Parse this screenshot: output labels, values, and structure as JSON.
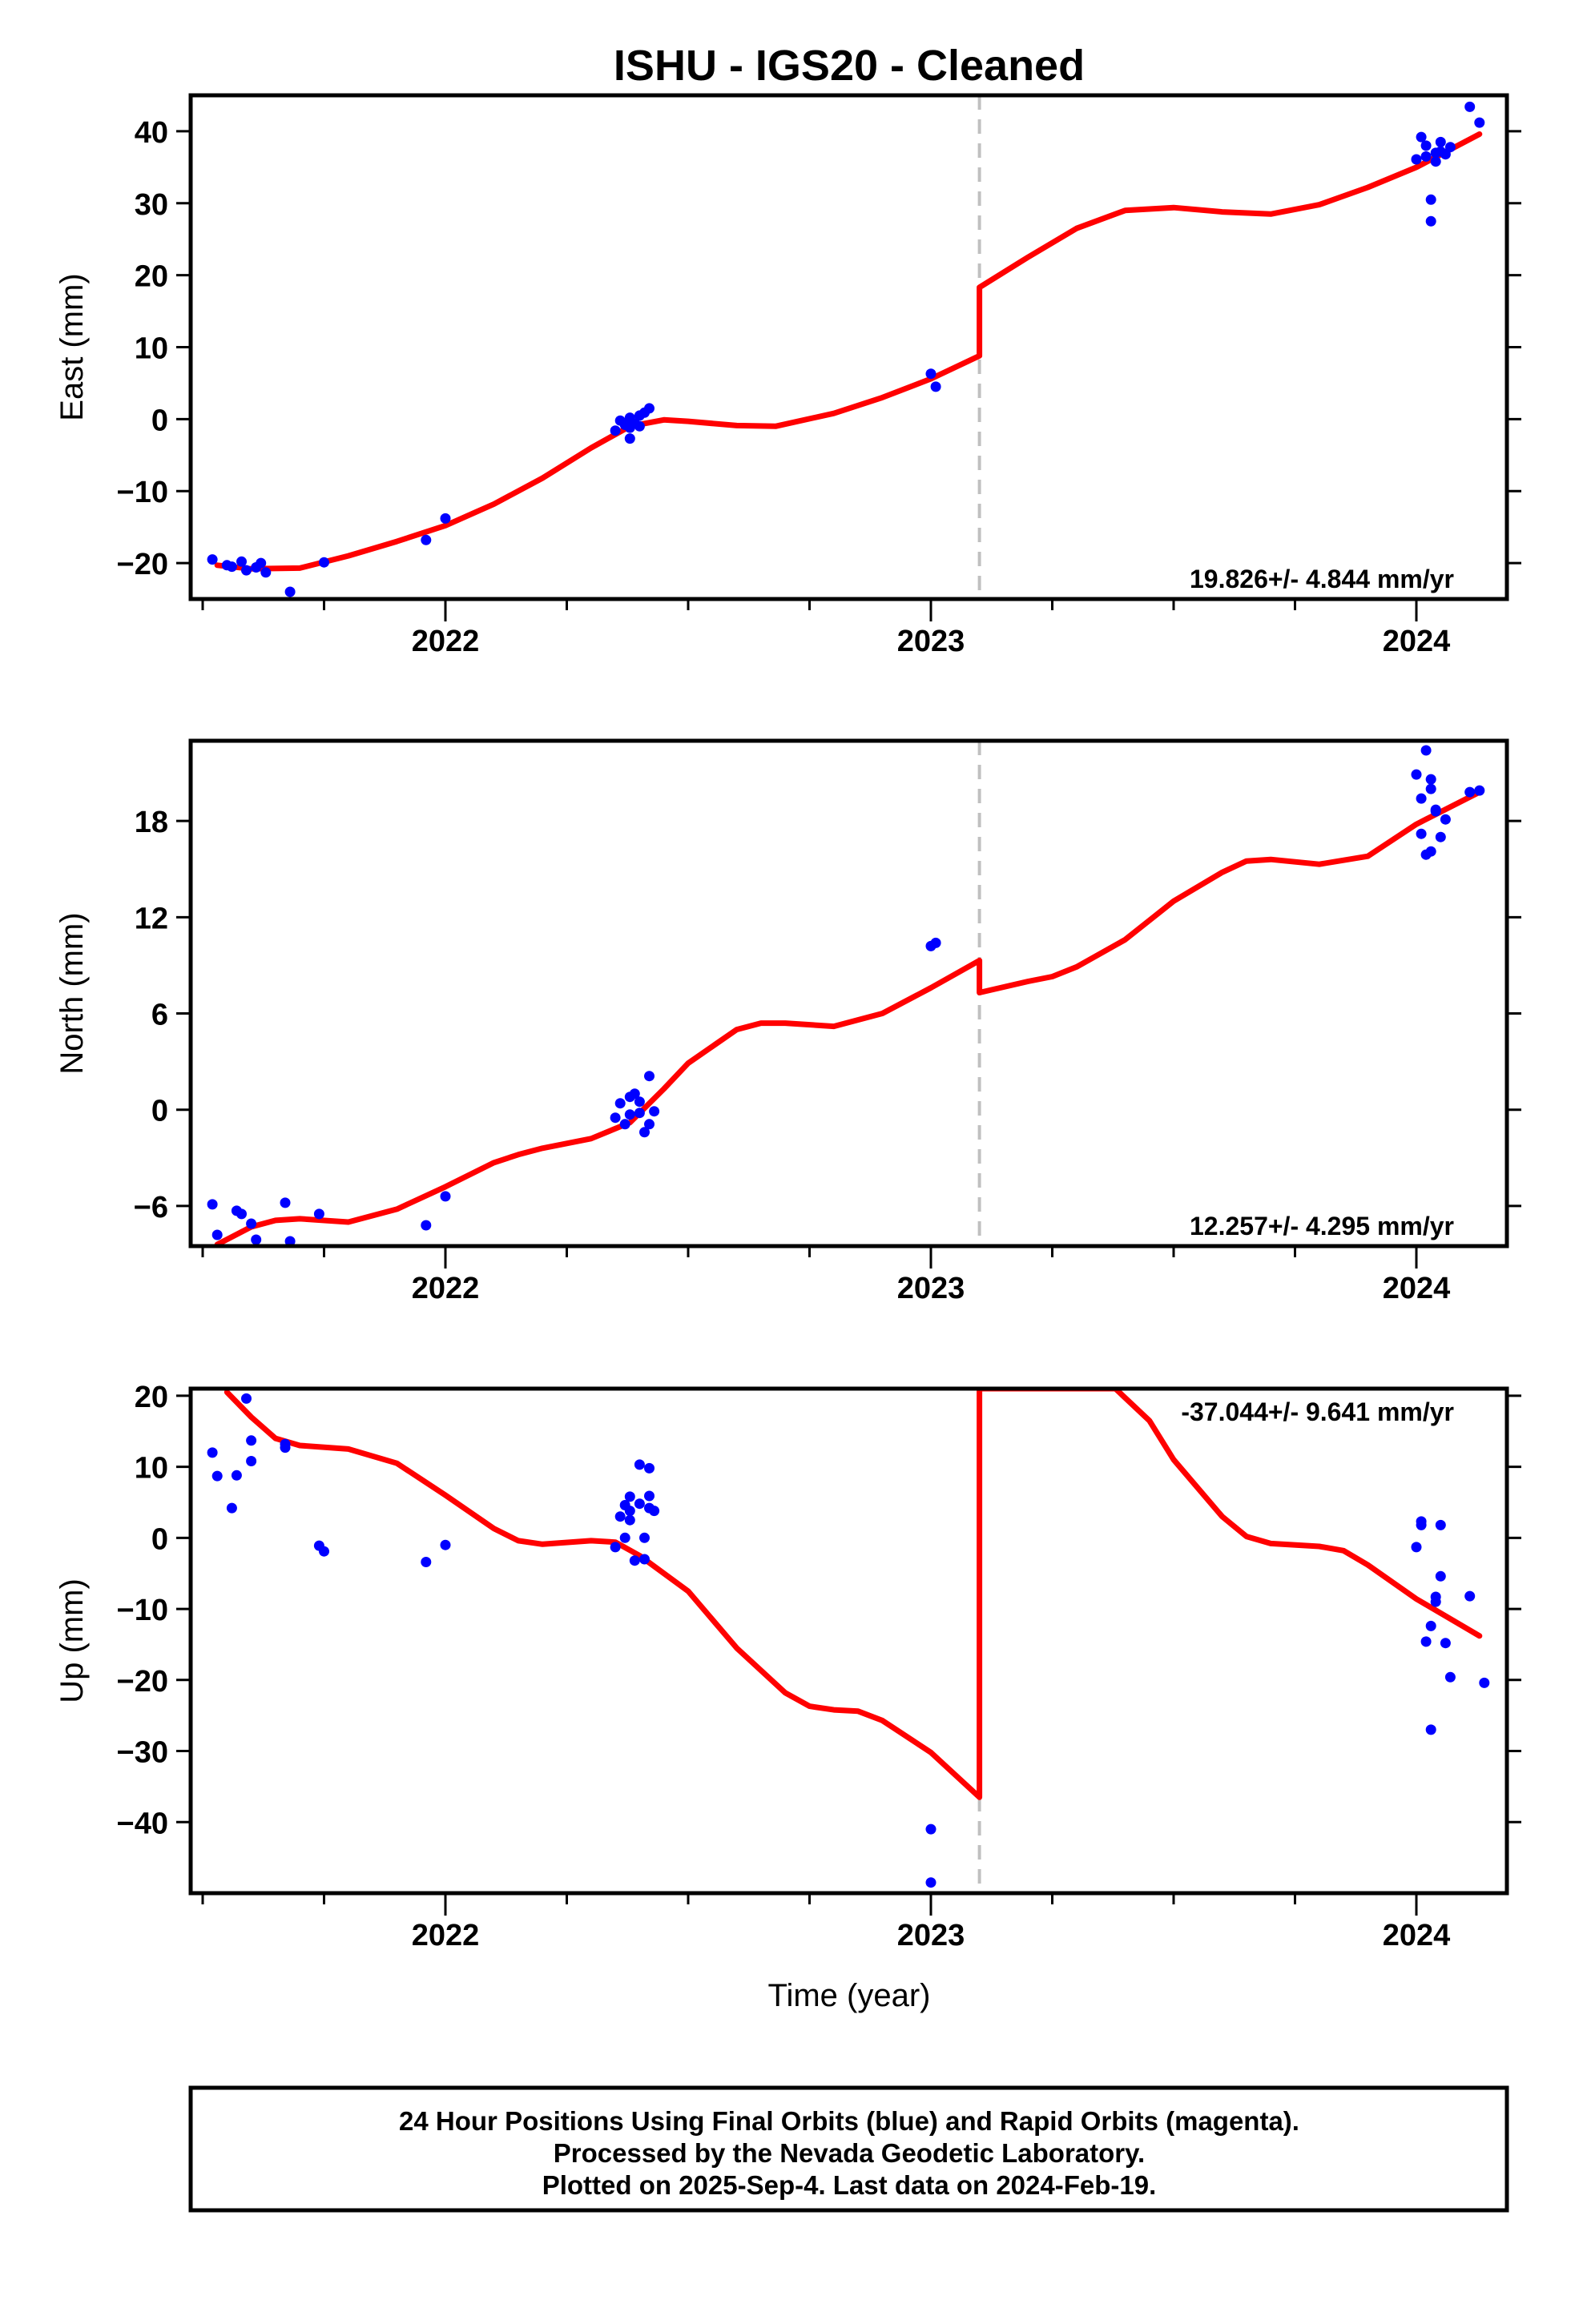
{
  "chart_title": "ISHU  - IGS20 - Cleaned",
  "x_axis_label": "Time (year)",
  "footer": {
    "line1": "24 Hour Positions Using Final Orbits (blue) and Rapid Orbits (magenta).",
    "line2": "Processed by the Nevada Geodetic Laboratory.",
    "line3": "Plotted on 2025-Sep-4. Last data on 2024-Feb-19."
  },
  "colors": {
    "data_points": "#0000ff",
    "model_curve": "#ff0000",
    "event_line": "#c0c0c0",
    "frame": "#000000"
  },
  "chart_data": [
    {
      "type": "scatter",
      "name": "east",
      "ylabel": "East (mm)",
      "xlim": [
        2021.5,
        2024.2
      ],
      "ylim": [
        -25,
        45
      ],
      "xticks": [
        2022,
        2023,
        2024
      ],
      "xtick_labels": [
        "2022",
        "2023",
        "2024"
      ],
      "yticks": [
        -20,
        -10,
        0,
        10,
        20,
        30,
        40
      ],
      "ytick_labels": [
        "−20",
        "−10",
        "0",
        "10",
        "20",
        "30",
        "40"
      ],
      "rate_label": "19.826+/- 4.844 mm/yr",
      "rate_position": "bottom-right",
      "event_line_x": 2023.1,
      "points": [
        [
          2021.52,
          -19.5
        ],
        [
          2021.55,
          -20.3
        ],
        [
          2021.56,
          -20.5
        ],
        [
          2021.58,
          -19.8
        ],
        [
          2021.59,
          -21.0
        ],
        [
          2021.61,
          -20.6
        ],
        [
          2021.62,
          -20.0
        ],
        [
          2021.63,
          -21.3
        ],
        [
          2021.68,
          -24.0
        ],
        [
          2021.75,
          -19.9
        ],
        [
          2021.96,
          -16.8
        ],
        [
          2022.0,
          -13.8
        ],
        [
          2022.35,
          -1.6
        ],
        [
          2022.36,
          -0.2
        ],
        [
          2022.37,
          -0.8
        ],
        [
          2022.38,
          -1.2
        ],
        [
          2022.38,
          0.2
        ],
        [
          2022.39,
          -0.6
        ],
        [
          2022.38,
          -2.7
        ],
        [
          2022.4,
          -1.0
        ],
        [
          2022.4,
          0.5
        ],
        [
          2022.41,
          0.9
        ],
        [
          2022.42,
          1.5
        ],
        [
          2023.0,
          6.3
        ],
        [
          2023.01,
          4.5
        ],
        [
          2024.0,
          36.1
        ],
        [
          2024.01,
          39.2
        ],
        [
          2024.02,
          36.5
        ],
        [
          2024.02,
          38.0
        ],
        [
          2024.03,
          27.5
        ],
        [
          2024.03,
          30.5
        ],
        [
          2024.04,
          37.0
        ],
        [
          2024.04,
          35.8
        ],
        [
          2024.05,
          38.5
        ],
        [
          2024.05,
          37.2
        ],
        [
          2024.06,
          36.8
        ],
        [
          2024.07,
          37.8
        ],
        [
          2024.11,
          43.4
        ],
        [
          2024.13,
          41.2
        ]
      ],
      "model_segments": [
        [
          [
            2021.53,
            -20.3
          ],
          [
            2021.6,
            -20.8
          ],
          [
            2021.7,
            -20.7
          ],
          [
            2021.8,
            -19.0
          ],
          [
            2021.9,
            -17.0
          ],
          [
            2022.0,
            -14.8
          ],
          [
            2022.1,
            -11.8
          ],
          [
            2022.2,
            -8.2
          ],
          [
            2022.3,
            -4.0
          ],
          [
            2022.38,
            -1.0
          ],
          [
            2022.45,
            -0.1
          ],
          [
            2022.5,
            -0.3
          ],
          [
            2022.6,
            -0.9
          ],
          [
            2022.68,
            -1.0
          ],
          [
            2022.8,
            0.8
          ],
          [
            2022.9,
            3.0
          ],
          [
            2023.0,
            5.6
          ],
          [
            2023.1,
            8.8
          ]
        ],
        [
          [
            2023.1,
            18.3
          ],
          [
            2023.2,
            22.5
          ],
          [
            2023.3,
            26.5
          ],
          [
            2023.4,
            29.0
          ],
          [
            2023.5,
            29.4
          ],
          [
            2023.6,
            28.8
          ],
          [
            2023.7,
            28.5
          ],
          [
            2023.8,
            29.8
          ],
          [
            2023.9,
            32.2
          ],
          [
            2024.0,
            35.0
          ],
          [
            2024.13,
            39.6
          ]
        ]
      ]
    },
    {
      "type": "scatter",
      "name": "north",
      "ylabel": "North (mm)",
      "xlim": [
        2021.5,
        2024.2
      ],
      "ylim": [
        -8.5,
        23
      ],
      "xticks": [
        2022,
        2023,
        2024
      ],
      "xtick_labels": [
        "2022",
        "2023",
        "2024"
      ],
      "yticks": [
        -6,
        0,
        6,
        12,
        18
      ],
      "ytick_labels": [
        "−6",
        "0",
        "6",
        "12",
        "18"
      ],
      "rate_label": "12.257+/- 4.295 mm/yr",
      "rate_position": "bottom-right",
      "event_line_x": 2023.1,
      "points": [
        [
          2021.52,
          -5.9
        ],
        [
          2021.53,
          -7.8
        ],
        [
          2021.57,
          -6.3
        ],
        [
          2021.58,
          -6.5
        ],
        [
          2021.6,
          -7.1
        ],
        [
          2021.61,
          -8.1
        ],
        [
          2021.68,
          -8.2
        ],
        [
          2021.67,
          -5.8
        ],
        [
          2021.74,
          -6.5
        ],
        [
          2021.96,
          -7.2
        ],
        [
          2022.0,
          -5.4
        ],
        [
          2022.35,
          -0.5
        ],
        [
          2022.36,
          0.4
        ],
        [
          2022.37,
          -0.9
        ],
        [
          2022.38,
          0.8
        ],
        [
          2022.38,
          -0.3
        ],
        [
          2022.39,
          1.0
        ],
        [
          2022.4,
          -0.2
        ],
        [
          2022.4,
          0.5
        ],
        [
          2022.41,
          -1.4
        ],
        [
          2022.42,
          -0.9
        ],
        [
          2022.42,
          2.1
        ],
        [
          2022.43,
          -0.1
        ],
        [
          2023.0,
          10.2
        ],
        [
          2023.01,
          10.4
        ],
        [
          2024.0,
          20.9
        ],
        [
          2024.01,
          19.4
        ],
        [
          2024.01,
          17.2
        ],
        [
          2024.02,
          22.4
        ],
        [
          2024.02,
          15.9
        ],
        [
          2024.03,
          16.1
        ],
        [
          2024.03,
          20.6
        ],
        [
          2024.03,
          20.0
        ],
        [
          2024.04,
          18.6
        ],
        [
          2024.04,
          18.7
        ],
        [
          2024.05,
          17.0
        ],
        [
          2024.06,
          18.1
        ],
        [
          2024.11,
          19.8
        ],
        [
          2024.13,
          19.9
        ]
      ],
      "model_segments": [
        [
          [
            2021.53,
            -8.4
          ],
          [
            2021.6,
            -7.3
          ],
          [
            2021.65,
            -6.9
          ],
          [
            2021.7,
            -6.8
          ],
          [
            2021.8,
            -7.0
          ],
          [
            2021.9,
            -6.2
          ],
          [
            2022.0,
            -4.8
          ],
          [
            2022.1,
            -3.3
          ],
          [
            2022.15,
            -2.8
          ],
          [
            2022.2,
            -2.4
          ],
          [
            2022.3,
            -1.8
          ],
          [
            2022.38,
            -0.8
          ],
          [
            2022.45,
            1.3
          ],
          [
            2022.5,
            2.9
          ],
          [
            2022.6,
            5.0
          ],
          [
            2022.65,
            5.4
          ],
          [
            2022.7,
            5.4
          ],
          [
            2022.8,
            5.2
          ],
          [
            2022.9,
            6.0
          ],
          [
            2023.0,
            7.6
          ],
          [
            2023.1,
            9.3
          ]
        ],
        [
          [
            2023.1,
            7.3
          ],
          [
            2023.2,
            8.0
          ],
          [
            2023.25,
            8.3
          ],
          [
            2023.3,
            8.9
          ],
          [
            2023.4,
            10.6
          ],
          [
            2023.5,
            13.0
          ],
          [
            2023.6,
            14.8
          ],
          [
            2023.65,
            15.5
          ],
          [
            2023.7,
            15.6
          ],
          [
            2023.8,
            15.3
          ],
          [
            2023.9,
            15.8
          ],
          [
            2024.0,
            17.8
          ],
          [
            2024.13,
            19.8
          ]
        ]
      ]
    },
    {
      "type": "scatter",
      "name": "up",
      "ylabel": "Up (mm)",
      "xlim": [
        2021.5,
        2024.2
      ],
      "ylim": [
        -50,
        21
      ],
      "xticks": [
        2022,
        2023,
        2024
      ],
      "xtick_labels": [
        "2022",
        "2023",
        "2024"
      ],
      "yticks": [
        -40,
        -30,
        -20,
        -10,
        0,
        10,
        20
      ],
      "ytick_labels": [
        "−40",
        "−30",
        "−20",
        "−10",
        "0",
        "10",
        "20"
      ],
      "rate_label": "-37.044+/- 9.641 mm/yr",
      "rate_position": "top-right",
      "event_line_x": 2023.1,
      "points": [
        [
          2021.52,
          12.0
        ],
        [
          2021.53,
          8.7
        ],
        [
          2021.56,
          4.2
        ],
        [
          2021.57,
          8.8
        ],
        [
          2021.59,
          19.6
        ],
        [
          2021.6,
          10.8
        ],
        [
          2021.6,
          13.7
        ],
        [
          2021.67,
          12.7
        ],
        [
          2021.67,
          13.2
        ],
        [
          2021.74,
          -1.1
        ],
        [
          2021.75,
          -1.9
        ],
        [
          2021.96,
          -3.4
        ],
        [
          2022.0,
          -1.0
        ],
        [
          2022.35,
          -1.3
        ],
        [
          2022.36,
          3.0
        ],
        [
          2022.37,
          4.6
        ],
        [
          2022.37,
          0.0
        ],
        [
          2022.38,
          3.8
        ],
        [
          2022.38,
          2.5
        ],
        [
          2022.38,
          5.8
        ],
        [
          2022.39,
          -3.2
        ],
        [
          2022.4,
          10.3
        ],
        [
          2022.4,
          4.8
        ],
        [
          2022.41,
          0.0
        ],
        [
          2022.41,
          -3.0
        ],
        [
          2022.42,
          9.8
        ],
        [
          2022.42,
          5.9
        ],
        [
          2022.42,
          4.2
        ],
        [
          2022.43,
          3.8
        ],
        [
          2023.0,
          -41.0
        ],
        [
          2023.0,
          -48.5
        ],
        [
          2024.0,
          -1.3
        ],
        [
          2024.01,
          1.8
        ],
        [
          2024.01,
          2.3
        ],
        [
          2024.02,
          -14.6
        ],
        [
          2024.03,
          -27.0
        ],
        [
          2024.03,
          -12.4
        ],
        [
          2024.04,
          -9.0
        ],
        [
          2024.04,
          -8.3
        ],
        [
          2024.05,
          -5.4
        ],
        [
          2024.05,
          1.8
        ],
        [
          2024.06,
          -14.8
        ],
        [
          2024.07,
          -19.6
        ],
        [
          2024.11,
          -8.2
        ],
        [
          2024.14,
          -20.4
        ]
      ],
      "model_segments": [
        [
          [
            2021.55,
            20.5
          ],
          [
            2021.6,
            17.0
          ],
          [
            2021.65,
            14.0
          ],
          [
            2021.7,
            13.0
          ],
          [
            2021.8,
            12.5
          ],
          [
            2021.9,
            10.5
          ],
          [
            2022.0,
            6.0
          ],
          [
            2022.1,
            1.3
          ],
          [
            2022.15,
            -0.4
          ],
          [
            2022.2,
            -0.9
          ],
          [
            2022.3,
            -0.4
          ],
          [
            2022.35,
            -0.6
          ],
          [
            2022.4,
            -2.5
          ],
          [
            2022.5,
            -7.5
          ],
          [
            2022.6,
            -15.5
          ],
          [
            2022.7,
            -21.8
          ],
          [
            2022.75,
            -23.7
          ],
          [
            2022.8,
            -24.2
          ],
          [
            2022.85,
            -24.4
          ],
          [
            2022.9,
            -25.7
          ],
          [
            2023.0,
            -30.2
          ],
          [
            2023.1,
            -36.5
          ]
        ],
        [
          [
            2023.1,
            21.0
          ]
        ],
        [
          [
            2023.38,
            21.0
          ],
          [
            2023.45,
            16.5
          ],
          [
            2023.5,
            11.0
          ],
          [
            2023.6,
            3.0
          ],
          [
            2023.65,
            0.2
          ],
          [
            2023.7,
            -0.8
          ],
          [
            2023.8,
            -1.2
          ],
          [
            2023.85,
            -1.8
          ],
          [
            2023.9,
            -3.8
          ],
          [
            2024.0,
            -8.6
          ],
          [
            2024.13,
            -13.8
          ]
        ]
      ]
    }
  ]
}
